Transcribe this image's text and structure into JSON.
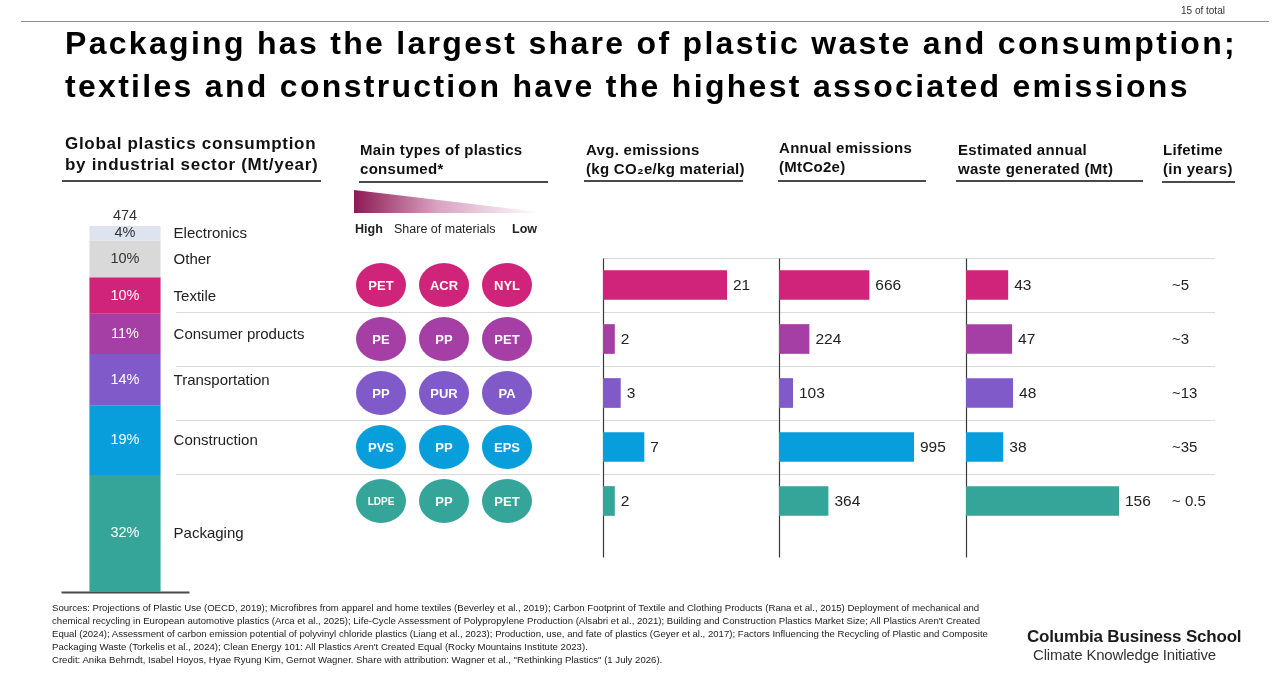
{
  "chart_data": [
    {
      "type": "other",
      "title": "Packaging has the largest share of plastic waste and consumption; textiles and construction have the highest associated emissions",
      "annotations": [
        "15 of total"
      ]
    },
    {
      "type": "bar",
      "title": "Global plastics consumption by industrial sector (Mt/year)",
      "stacked": true,
      "categories": [
        null
      ],
      "series": [
        {
          "name": "Packaging",
          "color": "#35a599",
          "values": [
            32
          ],
          "value_labels": [
            "32%"
          ]
        },
        {
          "name": "Construction",
          "color": "#079edb",
          "values": [
            19
          ],
          "value_labels": [
            "19%"
          ]
        },
        {
          "name": "Transportation",
          "color": "#7f5ac8",
          "values": [
            14
          ],
          "value_labels": [
            "14%"
          ]
        },
        {
          "name": "Consumer products",
          "color": "#a53fa5",
          "values": [
            11
          ],
          "value_labels": [
            "11%"
          ]
        },
        {
          "name": "Textile",
          "color": "#d0237a",
          "values": [
            10
          ],
          "value_labels": [
            "10%"
          ]
        },
        {
          "name": "Other",
          "color": "#d9d9d9",
          "values": [
            10
          ],
          "value_labels": [
            "10%"
          ]
        },
        {
          "name": "Electronics",
          "color": "#dde3ef",
          "values": [
            4
          ],
          "value_labels": [
            "4%"
          ]
        }
      ],
      "annotations": [
        "474"
      ]
    },
    {
      "type": "other",
      "title": "Main types of plastics consumed*",
      "annotations": [
        "High",
        "Share of materials",
        "Low",
        "PET",
        "ACR",
        "NYL",
        "PE",
        "PP",
        "PET",
        "PP",
        "PUR",
        "PA",
        "PVS",
        "PP",
        "EPS",
        "LDPE",
        "PP",
        "PET"
      ]
    },
    {
      "type": "bar",
      "orientation": "horizontal",
      "title": "Avg. emissions (kg CO₂e/kg material)",
      "categories": [
        null,
        null,
        null,
        null,
        null
      ],
      "values": [
        21,
        2,
        3,
        7,
        2
      ],
      "colors": [
        "#d0237a",
        "#a53fa5",
        "#7f5ac8",
        "#079edb",
        "#35a599"
      ],
      "data_labels": true,
      "grid": "y"
    },
    {
      "type": "bar",
      "orientation": "horizontal",
      "title": "Annual emissions (MtCo2e)",
      "categories": [
        null,
        null,
        null,
        null,
        null
      ],
      "values": [
        666,
        224,
        103,
        995,
        364
      ],
      "colors": [
        "#d0237a",
        "#a53fa5",
        "#7f5ac8",
        "#079edb",
        "#35a599"
      ],
      "data_labels": true,
      "grid": "y"
    },
    {
      "type": "bar",
      "orientation": "horizontal",
      "title": "Estimated annual waste generated (Mt)",
      "categories": [
        null,
        null,
        null,
        null,
        null
      ],
      "values": [
        43,
        47,
        48,
        38,
        156
      ],
      "colors": [
        "#d0237a",
        "#a53fa5",
        "#7f5ac8",
        "#079edb",
        "#35a599"
      ],
      "data_labels": true,
      "grid": "y"
    },
    {
      "type": "other",
      "title": "Lifetime (in years)",
      "annotations": [
        "~5",
        "~3",
        "~13",
        "~35",
        "~ 0.5"
      ]
    },
    {
      "type": "other",
      "annotations": [
        "Sources: Projections of Plastic Use (OECD, 2019); Microfibres from apparel and home textiles (Beverley et al., 2019); Carbon Footprint of Textile and Clothing Products (Rana et al., 2015) Deployment of mechanical and chemical recycling in European automotive plastics (Arca et al., 2025); Life-Cycle Assessment of Polypropylene Production (Alsabri et al., 2021); Building and Construction Plastics Market Size; All Plastics Aren't Created Equal (2024); Assessment of carbon emission potential of polyvinyl chloride plastics (Liang et al., 2023); Production, use, and fate of plastics (Geyer et al., 2017); Factors Influencing the Recycling of Plastic and Composite Packaging Waste (Torkelis et al., 2024); Clean Energy 101: All Plastics Aren't Created Equal (Rocky Mountains Institute 2023).",
        "Credit: Anika Behrndt, Isabel Hoyos, Hyae Ryung Kim, Gernot Wagner. Share with attribution: Wagner et al., \"Rethinking Plastics\" (1 July 2026).",
        "Columbia Business School",
        "Climate Knowledge Initiative"
      ]
    }
  ]
}
